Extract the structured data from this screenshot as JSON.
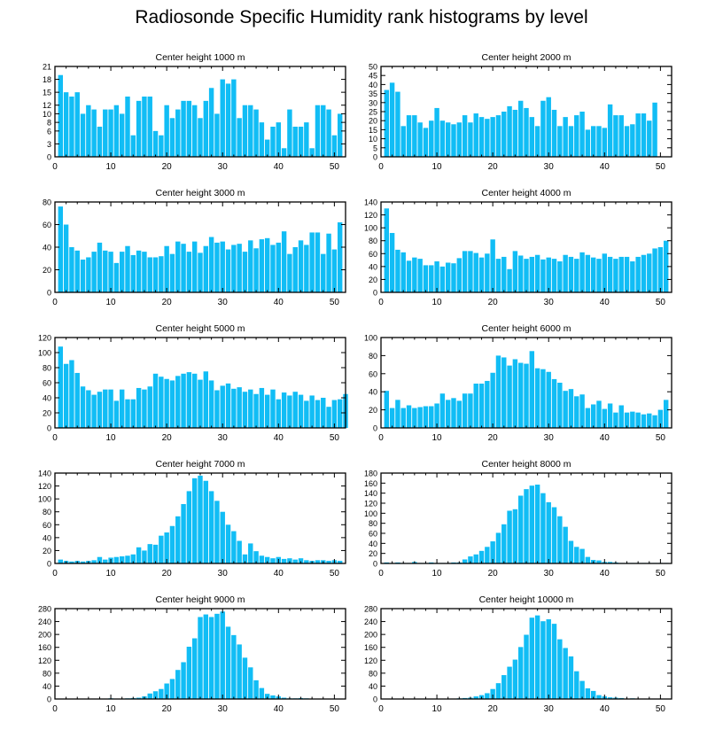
{
  "title": "Radiosonde Specific Humidity rank histograms by level",
  "colors": {
    "bar": "#11bdf5",
    "bar_edge": "#ffffff",
    "axis": "#000000"
  },
  "chart_data": [
    {
      "type": "bar",
      "title": "Center height 1000 m",
      "xlim": [
        0,
        52
      ],
      "ylim": [
        0,
        21
      ],
      "xticks": [
        0,
        10,
        20,
        30,
        40,
        50
      ],
      "yticks": [
        0,
        3,
        6,
        8,
        10,
        12,
        15,
        18,
        21
      ],
      "values": [
        19,
        15,
        14,
        15,
        10,
        12,
        11,
        7,
        11,
        11,
        12,
        10,
        14,
        5,
        13,
        14,
        14,
        6,
        5,
        12,
        9,
        11,
        13,
        13,
        12,
        9,
        13,
        16,
        10,
        18,
        17,
        18,
        9,
        12,
        12,
        11,
        8,
        4,
        7,
        8,
        2,
        11,
        7,
        7,
        8,
        2,
        12,
        12,
        11,
        5,
        10
      ]
    },
    {
      "type": "bar",
      "title": "Center height 2000 m",
      "xlim": [
        0,
        52
      ],
      "ylim": [
        0,
        50
      ],
      "xticks": [
        0,
        10,
        20,
        30,
        40,
        50
      ],
      "yticks": [
        0,
        5,
        10,
        15,
        20,
        25,
        30,
        35,
        40,
        45,
        50
      ],
      "values": [
        37,
        41,
        36,
        17,
        23,
        23,
        19,
        16,
        20,
        27,
        20,
        19,
        18,
        19,
        23,
        19,
        24,
        22,
        21,
        22,
        23,
        25,
        28,
        26,
        31,
        27,
        22,
        17,
        31,
        33,
        26,
        17,
        22,
        17,
        23,
        25,
        15,
        17,
        17,
        16,
        29,
        23,
        23,
        17,
        18,
        24,
        24,
        20,
        30
      ]
    },
    {
      "type": "bar",
      "title": "Center height 3000 m",
      "xlim": [
        0,
        52
      ],
      "ylim": [
        0,
        80
      ],
      "xticks": [
        0,
        10,
        20,
        30,
        40,
        50
      ],
      "yticks": [
        0,
        20,
        40,
        60,
        80
      ],
      "values": [
        76,
        60,
        40,
        37,
        29,
        31,
        36,
        44,
        37,
        36,
        26,
        36,
        41,
        33,
        37,
        36,
        31,
        31,
        32,
        41,
        34,
        45,
        43,
        36,
        45,
        35,
        41,
        49,
        44,
        45,
        38,
        42,
        43,
        36,
        46,
        39,
        47,
        48,
        42,
        44,
        54,
        34,
        40,
        46,
        42,
        53,
        53,
        34,
        52,
        38,
        62
      ]
    },
    {
      "type": "bar",
      "title": "Center height 4000 m",
      "xlim": [
        0,
        52
      ],
      "ylim": [
        0,
        140
      ],
      "xticks": [
        0,
        10,
        20,
        30,
        40,
        50
      ],
      "yticks": [
        0,
        20,
        40,
        60,
        80,
        100,
        120,
        140
      ],
      "values": [
        130,
        92,
        66,
        62,
        49,
        54,
        52,
        42,
        42,
        48,
        40,
        46,
        45,
        53,
        64,
        64,
        61,
        54,
        60,
        82,
        52,
        55,
        36,
        64,
        57,
        52,
        55,
        58,
        51,
        54,
        52,
        48,
        58,
        55,
        52,
        62,
        58,
        54,
        52,
        60,
        55,
        52,
        55,
        55,
        48,
        55,
        58,
        60,
        68,
        70,
        80
      ]
    },
    {
      "type": "bar",
      "title": "Center height 5000 m",
      "xlim": [
        0,
        52
      ],
      "ylim": [
        0,
        120
      ],
      "xticks": [
        0,
        10,
        20,
        30,
        40,
        50
      ],
      "yticks": [
        0,
        20,
        40,
        60,
        80,
        100,
        120
      ],
      "values": [
        108,
        85,
        90,
        73,
        55,
        50,
        44,
        48,
        51,
        51,
        36,
        51,
        38,
        38,
        53,
        51,
        55,
        72,
        68,
        65,
        63,
        69,
        72,
        74,
        72,
        64,
        75,
        63,
        50,
        56,
        59,
        52,
        54,
        48,
        51,
        45,
        53,
        44,
        51,
        38,
        47,
        43,
        48,
        44,
        36,
        43,
        37,
        40,
        28,
        37,
        38,
        45
      ]
    },
    {
      "type": "bar",
      "title": "Center height 6000 m",
      "xlim": [
        0,
        52
      ],
      "ylim": [
        0,
        100
      ],
      "xticks": [
        0,
        10,
        20,
        30,
        40,
        50
      ],
      "yticks": [
        0,
        20,
        40,
        60,
        80,
        100
      ],
      "values": [
        41,
        22,
        31,
        22,
        25,
        22,
        23,
        24,
        24,
        27,
        38,
        31,
        33,
        30,
        38,
        38,
        49,
        49,
        52,
        61,
        80,
        78,
        69,
        76,
        72,
        71,
        85,
        66,
        65,
        62,
        54,
        50,
        41,
        43,
        35,
        37,
        22,
        26,
        30,
        21,
        27,
        17,
        25,
        17,
        18,
        17,
        15,
        16,
        14,
        20,
        31
      ]
    },
    {
      "type": "bar",
      "title": "Center height 7000 m",
      "xlim": [
        0,
        52
      ],
      "ylim": [
        0,
        140
      ],
      "xticks": [
        0,
        10,
        20,
        30,
        40,
        50
      ],
      "yticks": [
        0,
        20,
        40,
        60,
        80,
        100,
        120,
        140
      ],
      "values": [
        6,
        4,
        3,
        4,
        3,
        4,
        5,
        10,
        6,
        9,
        10,
        11,
        12,
        14,
        25,
        20,
        30,
        29,
        43,
        48,
        58,
        73,
        92,
        112,
        132,
        136,
        128,
        112,
        97,
        80,
        60,
        50,
        35,
        14,
        31,
        19,
        12,
        10,
        8,
        10,
        7,
        8,
        6,
        8,
        5,
        4,
        5,
        5,
        4,
        5,
        4
      ]
    },
    {
      "type": "bar",
      "title": "Center height 8000 m",
      "xlim": [
        0,
        52
      ],
      "ylim": [
        0,
        180
      ],
      "xticks": [
        0,
        10,
        20,
        30,
        40,
        50
      ],
      "yticks": [
        0,
        20,
        40,
        60,
        80,
        100,
        120,
        140,
        160,
        180
      ],
      "values": [
        2,
        1,
        2,
        1,
        1,
        3,
        1,
        1,
        2,
        1,
        1,
        1,
        2,
        2,
        8,
        14,
        18,
        25,
        33,
        44,
        61,
        78,
        105,
        108,
        135,
        148,
        155,
        157,
        140,
        122,
        112,
        94,
        73,
        45,
        33,
        29,
        13,
        7,
        6,
        3,
        3,
        2,
        1,
        1,
        1,
        1,
        1,
        1,
        1,
        1,
        1
      ]
    },
    {
      "type": "bar",
      "title": "Center height 9000 m",
      "xlim": [
        0,
        52
      ],
      "ylim": [
        0,
        280
      ],
      "xticks": [
        0,
        10,
        20,
        30,
        40,
        50
      ],
      "yticks": [
        0,
        40,
        80,
        120,
        160,
        200,
        240,
        280
      ],
      "values": [
        1,
        1,
        1,
        1,
        1,
        1,
        1,
        1,
        1,
        2,
        1,
        1,
        2,
        3,
        4,
        8,
        17,
        24,
        31,
        48,
        62,
        90,
        114,
        162,
        188,
        254,
        262,
        254,
        264,
        271,
        224,
        198,
        169,
        128,
        98,
        58,
        34,
        16,
        11,
        8,
        4,
        2,
        2,
        3,
        2,
        1,
        1,
        1,
        1,
        1,
        1
      ]
    },
    {
      "type": "bar",
      "title": "Center height 10000 m",
      "xlim": [
        0,
        52
      ],
      "ylim": [
        0,
        280
      ],
      "xticks": [
        0,
        10,
        20,
        30,
        40,
        50
      ],
      "yticks": [
        0,
        40,
        80,
        120,
        160,
        200,
        240,
        280
      ],
      "values": [
        1,
        1,
        1,
        1,
        1,
        1,
        1,
        1,
        1,
        1,
        1,
        1,
        1,
        2,
        3,
        4,
        8,
        12,
        18,
        31,
        49,
        74,
        100,
        122,
        161,
        199,
        252,
        259,
        241,
        247,
        233,
        185,
        158,
        132,
        86,
        56,
        33,
        25,
        12,
        8,
        5,
        4,
        3,
        1,
        2,
        1,
        1,
        1,
        1,
        1,
        1
      ]
    }
  ]
}
